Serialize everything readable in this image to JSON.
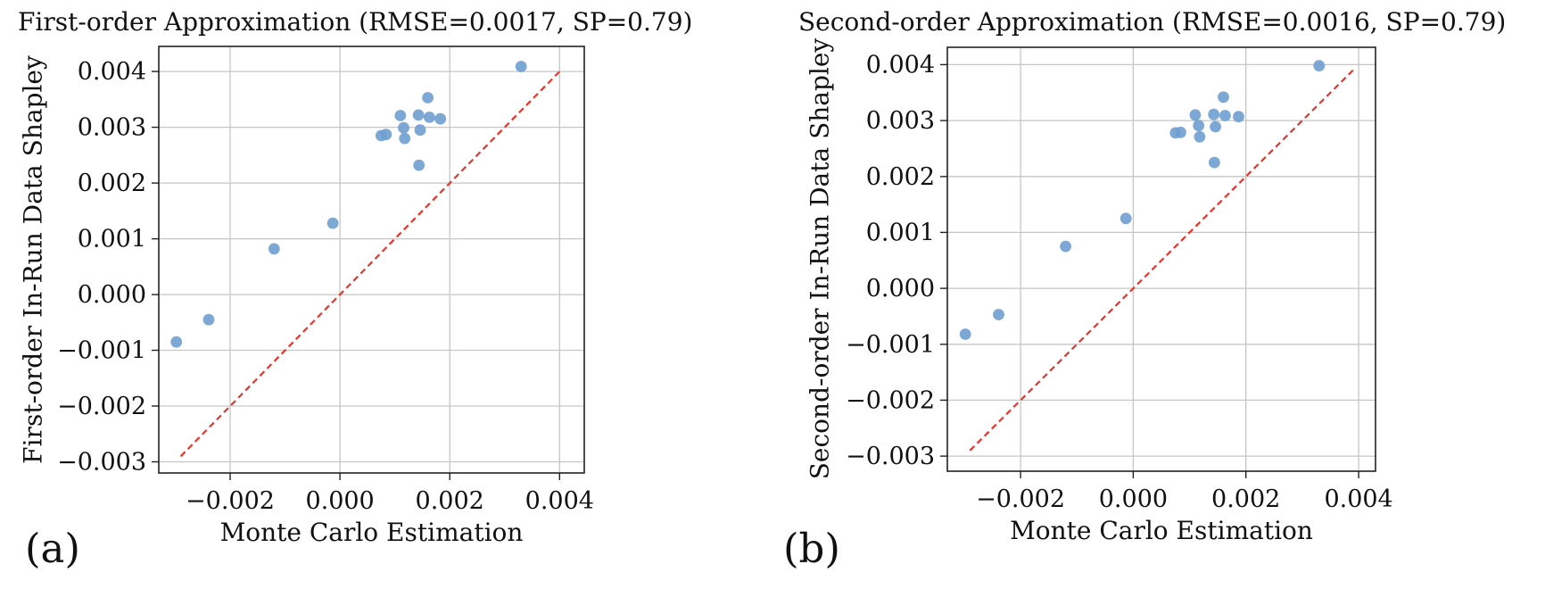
{
  "figure": {
    "background_color": "#ffffff",
    "accent_marker_color": "#6f9fd0",
    "accent_line_color": "#e6342a",
    "panel_a": {
      "caption": "(a)",
      "title": "First-order Approximation (RMSE=0.0017, SP=0.79)",
      "xlabel": "Monte Carlo Estimation",
      "ylabel": "First-order In-Run Data Shapley"
    },
    "panel_b": {
      "caption": "(b)",
      "title": "Second-order Approximation (RMSE=0.0016, SP=0.79)",
      "xlabel": "Monte Carlo Estimation",
      "ylabel": "Second-order In-Run Data Shapley"
    }
  },
  "chart_data": [
    {
      "type": "scatter",
      "title": "First-order Approximation (RMSE=0.0017, SP=0.79)",
      "rmse": 0.0017,
      "sp": 0.79,
      "xlabel": "Monte Carlo Estimation",
      "ylabel": "First-order In-Run Data Shapley",
      "grid": true,
      "legend": "none",
      "xlim": [
        -0.0033,
        0.00445
      ],
      "ylim": [
        -0.0032,
        0.00445
      ],
      "xticks": [
        -0.002,
        0.0,
        0.002,
        0.004
      ],
      "xtick_labels": [
        "−0.002",
        "0.000",
        "0.002",
        "0.004"
      ],
      "yticks": [
        0.004,
        0.003,
        0.002,
        0.001,
        0.0,
        -0.001,
        -0.002,
        -0.003
      ],
      "ytick_labels": [
        "0.004",
        "0.003",
        "0.002",
        "0.001",
        "0.000",
        "−0.001",
        "−0.002",
        "−0.003"
      ],
      "marker_color": "#6f9fd0",
      "marker_radius": 6.4,
      "points": [
        [
          0.0033,
          0.00409
        ],
        [
          0.0016,
          0.00353
        ],
        [
          0.0011,
          0.00321
        ],
        [
          0.00143,
          0.00322
        ],
        [
          0.00163,
          0.00318
        ],
        [
          0.00183,
          0.00315
        ],
        [
          0.00116,
          0.00299
        ],
        [
          0.00146,
          0.00295
        ],
        [
          0.00075,
          0.00285
        ],
        [
          0.00084,
          0.00287
        ],
        [
          0.00118,
          0.0028
        ],
        [
          0.00144,
          0.00232
        ],
        [
          -0.00013,
          0.00128
        ],
        [
          -0.0012,
          0.00082
        ],
        [
          -0.00239,
          -0.00045
        ],
        [
          -0.00298,
          -0.00085
        ]
      ],
      "identity_line": {
        "x": [
          -0.0029,
          0.00405
        ],
        "y": [
          -0.0029,
          0.00405
        ],
        "style": "dashed",
        "color": "#e6342a"
      }
    },
    {
      "type": "scatter",
      "title": "Second-order Approximation (RMSE=0.0016, SP=0.79)",
      "rmse": 0.0016,
      "sp": 0.79,
      "xlabel": "Monte Carlo Estimation",
      "ylabel": "Second-order In-Run Data Shapley",
      "grid": true,
      "legend": "none",
      "xlim": [
        -0.0033,
        0.0043
      ],
      "ylim": [
        -0.00327,
        0.00431
      ],
      "xticks": [
        -0.002,
        0.0,
        0.002,
        0.004
      ],
      "xtick_labels": [
        "−0.002",
        "0.000",
        "0.002",
        "0.004"
      ],
      "yticks": [
        0.004,
        0.003,
        0.002,
        0.001,
        0.0,
        -0.001,
        -0.002,
        -0.003
      ],
      "ytick_labels": [
        "0.004",
        "0.003",
        "0.002",
        "0.001",
        "0.000",
        "−0.001",
        "−0.002",
        "−0.003"
      ],
      "marker_color": "#6f9fd0",
      "marker_radius": 6.4,
      "points": [
        [
          0.0033,
          0.00398
        ],
        [
          0.0016,
          0.00342
        ],
        [
          0.0011,
          0.0031
        ],
        [
          0.00143,
          0.00311
        ],
        [
          0.00163,
          0.00309
        ],
        [
          0.00187,
          0.00307
        ],
        [
          0.00116,
          0.00291
        ],
        [
          0.00146,
          0.00289
        ],
        [
          0.00075,
          0.00278
        ],
        [
          0.00084,
          0.00279
        ],
        [
          0.00118,
          0.00271
        ],
        [
          0.00144,
          0.00225
        ],
        [
          -0.00013,
          0.00125
        ],
        [
          -0.0012,
          0.00075
        ],
        [
          -0.00239,
          -0.00047
        ],
        [
          -0.00298,
          -0.00082
        ]
      ],
      "identity_line": {
        "x": [
          -0.0029,
          0.00395
        ],
        "y": [
          -0.0029,
          0.00395
        ],
        "style": "dashed",
        "color": "#e6342a"
      }
    }
  ]
}
